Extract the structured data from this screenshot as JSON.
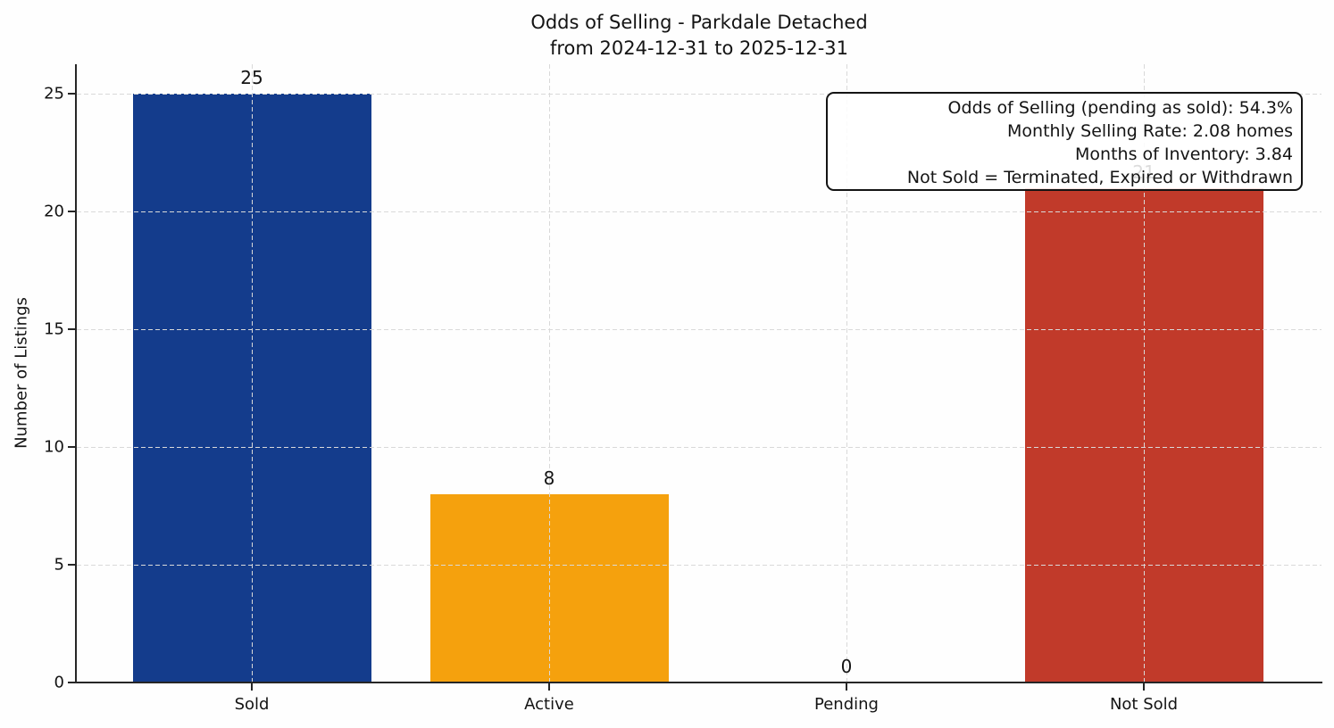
{
  "chart_data": {
    "type": "bar",
    "title": "Odds of Selling - Parkdale Detached",
    "subtitle": "from 2024-12-31 to 2025-12-31",
    "ylabel": "Number of Listings",
    "xlabel": "",
    "categories": [
      "Sold",
      "Active",
      "Pending",
      "Not Sold"
    ],
    "values": [
      25,
      8,
      0,
      21
    ],
    "bar_colors": [
      "#143c8c",
      "#f5a10d",
      null,
      "#c13a2a"
    ],
    "yticks": [
      0,
      5,
      10,
      15,
      20,
      25
    ],
    "ylim": [
      0,
      26.3
    ],
    "grid": true,
    "legend": false,
    "annotation": {
      "lines": [
        "Odds of Selling (pending as sold): 54.3%",
        "Monthly Selling Rate: 2.08 homes",
        "Months of Inventory: 3.84",
        "Not Sold = Terminated, Expired or Withdrawn"
      ],
      "odds_of_selling_pct": 54.3,
      "monthly_selling_rate_homes": 2.08,
      "months_of_inventory": 3.84
    }
  }
}
